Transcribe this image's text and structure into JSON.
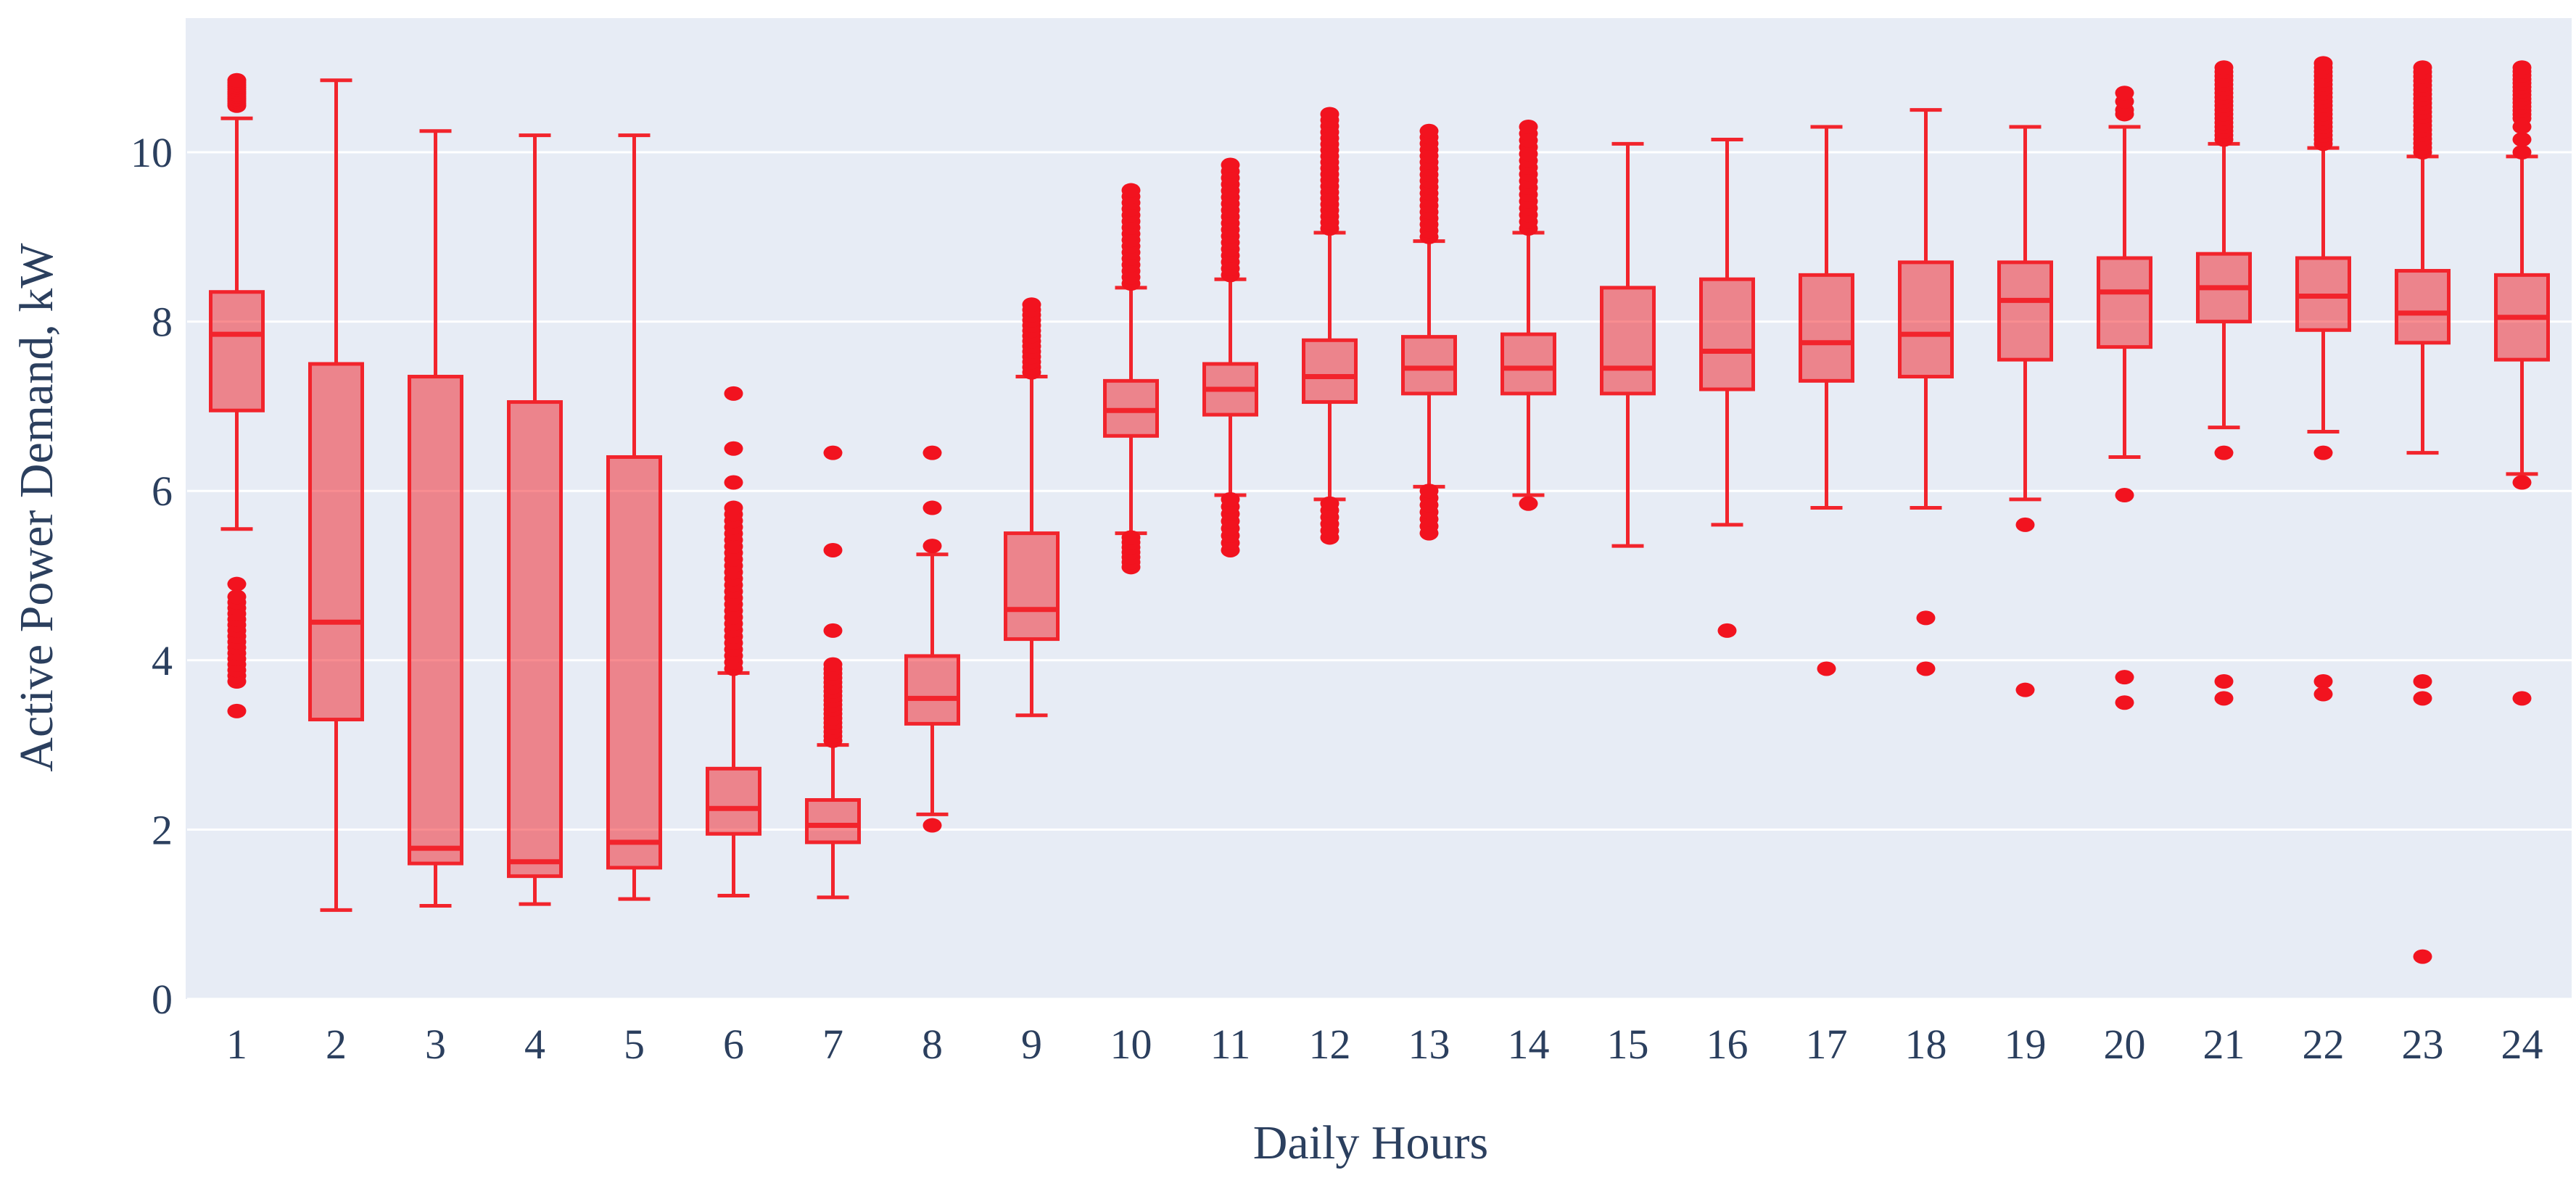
{
  "chart_data": {
    "type": "box",
    "title": "",
    "xlabel": "Daily Hours",
    "ylabel": "Active Power Demand, kW",
    "x_categories": [
      "1",
      "2",
      "3",
      "4",
      "5",
      "6",
      "7",
      "8",
      "9",
      "10",
      "11",
      "12",
      "13",
      "14",
      "15",
      "16",
      "17",
      "18",
      "19",
      "20",
      "21",
      "22",
      "23",
      "24"
    ],
    "y_ticks": [
      0,
      2,
      4,
      6,
      8,
      10
    ],
    "ylim": [
      0,
      11.6
    ],
    "grid": "horizontal white gridlines on light blue panel",
    "legend_position": "none",
    "colors": {
      "box_line": "#f2242c",
      "box_fill": "rgba(242,36,44,0.52)",
      "outlier": "#f2131f",
      "plot_bg": "#e7ecf5",
      "grid_line": "#ffffff",
      "axis_text": "#2b3f5e",
      "page_bg": "#ffffff"
    },
    "boxes": [
      {
        "hour": "1",
        "low": 5.55,
        "q1": 6.95,
        "median": 7.85,
        "q3": 8.35,
        "high": 10.4,
        "outliers_high": [
          [
            10.55,
            10.85,
            12
          ]
        ],
        "outliers_low": [
          [
            4.9,
            4.9,
            1
          ],
          [
            3.75,
            4.75,
            16
          ],
          [
            3.4,
            3.4,
            1
          ]
        ]
      },
      {
        "hour": "2",
        "low": 1.05,
        "q1": 3.3,
        "median": 4.45,
        "q3": 7.5,
        "high": 10.85,
        "outliers_high": [],
        "outliers_low": []
      },
      {
        "hour": "3",
        "low": 1.1,
        "q1": 1.6,
        "median": 1.78,
        "q3": 7.35,
        "high": 10.25,
        "outliers_high": [],
        "outliers_low": []
      },
      {
        "hour": "4",
        "low": 1.12,
        "q1": 1.45,
        "median": 1.62,
        "q3": 7.05,
        "high": 10.2,
        "outliers_high": [],
        "outliers_low": []
      },
      {
        "hour": "5",
        "low": 1.18,
        "q1": 1.55,
        "median": 1.85,
        "q3": 6.4,
        "high": 10.2,
        "outliers_high": [],
        "outliers_low": []
      },
      {
        "hour": "6",
        "low": 1.22,
        "q1": 1.95,
        "median": 2.25,
        "q3": 2.72,
        "high": 3.85,
        "outliers_high": [
          [
            3.9,
            5.8,
            26
          ],
          [
            6.1,
            6.1,
            1
          ],
          [
            6.5,
            6.5,
            1
          ],
          [
            7.15,
            7.15,
            1
          ]
        ],
        "outliers_low": []
      },
      {
        "hour": "7",
        "low": 1.2,
        "q1": 1.85,
        "median": 2.05,
        "q3": 2.35,
        "high": 3.0,
        "outliers_high": [
          [
            3.05,
            3.95,
            18
          ],
          [
            4.35,
            4.35,
            1
          ],
          [
            5.3,
            5.3,
            1
          ],
          [
            6.45,
            6.45,
            1
          ]
        ],
        "outliers_low": []
      },
      {
        "hour": "8",
        "low": 2.18,
        "q1": 3.25,
        "median": 3.55,
        "q3": 4.05,
        "high": 5.25,
        "outliers_high": [
          [
            5.35,
            5.35,
            1
          ],
          [
            5.8,
            5.8,
            1
          ],
          [
            6.45,
            6.45,
            1
          ]
        ],
        "outliers_low": [
          [
            2.05,
            2.05,
            1
          ]
        ]
      },
      {
        "hour": "9",
        "low": 3.35,
        "q1": 4.25,
        "median": 4.6,
        "q3": 5.5,
        "high": 7.35,
        "outliers_high": [
          [
            7.4,
            8.2,
            14
          ]
        ],
        "outliers_low": []
      },
      {
        "hour": "10",
        "low": 5.5,
        "q1": 6.65,
        "median": 6.95,
        "q3": 7.3,
        "high": 8.4,
        "outliers_high": [
          [
            8.45,
            9.55,
            16
          ]
        ],
        "outliers_low": [
          [
            5.1,
            5.45,
            7
          ]
        ]
      },
      {
        "hour": "11",
        "low": 5.95,
        "q1": 6.9,
        "median": 7.2,
        "q3": 7.5,
        "high": 8.5,
        "outliers_high": [
          [
            8.55,
            9.85,
            18
          ]
        ],
        "outliers_low": [
          [
            5.3,
            5.9,
            8
          ]
        ]
      },
      {
        "hour": "12",
        "low": 5.9,
        "q1": 7.05,
        "median": 7.35,
        "q3": 7.78,
        "high": 9.05,
        "outliers_high": [
          [
            9.1,
            10.45,
            20
          ]
        ],
        "outliers_low": [
          [
            5.45,
            5.85,
            6
          ]
        ]
      },
      {
        "hour": "13",
        "low": 6.05,
        "q1": 7.15,
        "median": 7.45,
        "q3": 7.82,
        "high": 8.95,
        "outliers_high": [
          [
            9.0,
            10.25,
            18
          ]
        ],
        "outliers_low": [
          [
            5.5,
            6.0,
            7
          ]
        ]
      },
      {
        "hour": "14",
        "low": 5.95,
        "q1": 7.15,
        "median": 7.45,
        "q3": 7.85,
        "high": 9.05,
        "outliers_high": [
          [
            9.1,
            10.3,
            16
          ]
        ],
        "outliers_low": [
          [
            5.85,
            5.85,
            1
          ]
        ]
      },
      {
        "hour": "15",
        "low": 5.35,
        "q1": 7.15,
        "median": 7.45,
        "q3": 8.4,
        "high": 10.1,
        "outliers_high": [],
        "outliers_low": []
      },
      {
        "hour": "16",
        "low": 5.6,
        "q1": 7.2,
        "median": 7.65,
        "q3": 8.5,
        "high": 10.15,
        "outliers_high": [],
        "outliers_low": [
          [
            4.35,
            4.35,
            1
          ]
        ]
      },
      {
        "hour": "17",
        "low": 5.8,
        "q1": 7.3,
        "median": 7.75,
        "q3": 8.55,
        "high": 10.3,
        "outliers_high": [],
        "outliers_low": [
          [
            3.9,
            3.9,
            1
          ]
        ]
      },
      {
        "hour": "18",
        "low": 5.8,
        "q1": 7.35,
        "median": 7.85,
        "q3": 8.7,
        "high": 10.5,
        "outliers_high": [],
        "outliers_low": [
          [
            4.5,
            4.5,
            1
          ],
          [
            3.9,
            3.9,
            1
          ]
        ]
      },
      {
        "hour": "19",
        "low": 5.9,
        "q1": 7.55,
        "median": 8.25,
        "q3": 8.7,
        "high": 10.3,
        "outliers_high": [],
        "outliers_low": [
          [
            5.6,
            5.6,
            1
          ],
          [
            3.65,
            3.65,
            1
          ]
        ]
      },
      {
        "hour": "20",
        "low": 6.4,
        "q1": 7.7,
        "median": 8.35,
        "q3": 8.75,
        "high": 10.3,
        "outliers_high": [
          [
            10.45,
            10.5,
            2
          ],
          [
            10.6,
            10.7,
            2
          ]
        ],
        "outliers_low": [
          [
            5.95,
            5.95,
            1
          ],
          [
            3.8,
            3.8,
            1
          ],
          [
            3.5,
            3.5,
            1
          ]
        ]
      },
      {
        "hour": "21",
        "low": 6.75,
        "q1": 8.0,
        "median": 8.4,
        "q3": 8.8,
        "high": 10.1,
        "outliers_high": [
          [
            10.15,
            11.0,
            18
          ]
        ],
        "outliers_low": [
          [
            6.45,
            6.45,
            1
          ],
          [
            3.75,
            3.75,
            1
          ],
          [
            3.55,
            3.55,
            1
          ]
        ]
      },
      {
        "hour": "22",
        "low": 6.7,
        "q1": 7.9,
        "median": 8.3,
        "q3": 8.75,
        "high": 10.05,
        "outliers_high": [
          [
            10.1,
            11.05,
            20
          ]
        ],
        "outliers_low": [
          [
            6.45,
            6.45,
            1
          ],
          [
            3.75,
            3.75,
            1
          ],
          [
            3.6,
            3.6,
            1
          ]
        ]
      },
      {
        "hour": "23",
        "low": 6.45,
        "q1": 7.75,
        "median": 8.1,
        "q3": 8.6,
        "high": 9.95,
        "outliers_high": [
          [
            10.0,
            11.0,
            20
          ]
        ],
        "outliers_low": [
          [
            3.75,
            3.75,
            1
          ],
          [
            3.55,
            3.55,
            1
          ],
          [
            0.5,
            0.5,
            1
          ]
        ]
      },
      {
        "hour": "24",
        "low": 6.2,
        "q1": 7.55,
        "median": 8.05,
        "q3": 8.55,
        "high": 9.95,
        "outliers_high": [
          [
            10.4,
            11.0,
            14
          ],
          [
            10.0,
            10.3,
            3
          ]
        ],
        "outliers_low": [
          [
            6.1,
            6.1,
            1
          ],
          [
            3.55,
            3.55,
            1
          ]
        ]
      }
    ]
  }
}
